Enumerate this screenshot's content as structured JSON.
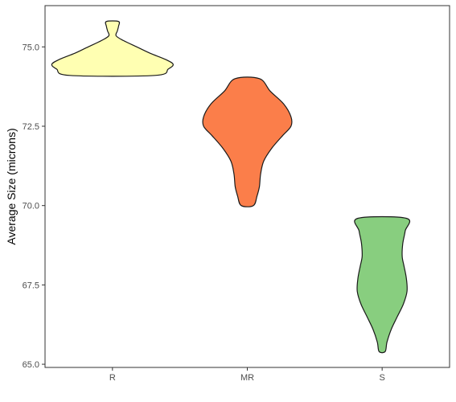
{
  "chart_data": {
    "type": "violin",
    "title": "",
    "xlabel": "",
    "ylabel": "Average Size (microns)",
    "ylim": [
      64.9,
      76.3
    ],
    "yticks": [
      65.0,
      67.5,
      70.0,
      72.5,
      75.0
    ],
    "ytick_labels": [
      "65.0",
      "67.5",
      "70.0",
      "72.5",
      "75.0"
    ],
    "categories": [
      "R",
      "MR",
      "S"
    ],
    "grid": false,
    "legend": "none",
    "series": [
      {
        "category": "R",
        "color": "#FFFFB2",
        "min": 74.1,
        "max": 75.8,
        "profile": [
          [
            74.1,
            0.7
          ],
          [
            74.3,
            0.92
          ],
          [
            74.45,
            1.0
          ],
          [
            74.6,
            0.88
          ],
          [
            74.8,
            0.62
          ],
          [
            75.0,
            0.4
          ],
          [
            75.2,
            0.18
          ],
          [
            75.35,
            0.06
          ],
          [
            75.5,
            0.08
          ],
          [
            75.65,
            0.1
          ],
          [
            75.8,
            0.1
          ]
        ]
      },
      {
        "category": "MR",
        "color": "#FB7E4A",
        "min": 70.0,
        "max": 74.0,
        "profile": [
          [
            70.0,
            0.1
          ],
          [
            70.3,
            0.16
          ],
          [
            70.6,
            0.2
          ],
          [
            71.0,
            0.22
          ],
          [
            71.4,
            0.27
          ],
          [
            71.8,
            0.4
          ],
          [
            72.2,
            0.58
          ],
          [
            72.5,
            0.72
          ],
          [
            72.8,
            0.72
          ],
          [
            73.2,
            0.6
          ],
          [
            73.6,
            0.38
          ],
          [
            74.0,
            0.2
          ]
        ]
      },
      {
        "category": "S",
        "color": "#88CE7F",
        "min": 65.4,
        "max": 69.6,
        "profile": [
          [
            65.4,
            0.05
          ],
          [
            65.7,
            0.08
          ],
          [
            66.1,
            0.15
          ],
          [
            66.5,
            0.25
          ],
          [
            66.9,
            0.35
          ],
          [
            67.3,
            0.41
          ],
          [
            67.7,
            0.4
          ],
          [
            68.1,
            0.36
          ],
          [
            68.4,
            0.33
          ],
          [
            68.8,
            0.34
          ],
          [
            69.2,
            0.38
          ],
          [
            69.6,
            0.4
          ]
        ]
      }
    ]
  }
}
